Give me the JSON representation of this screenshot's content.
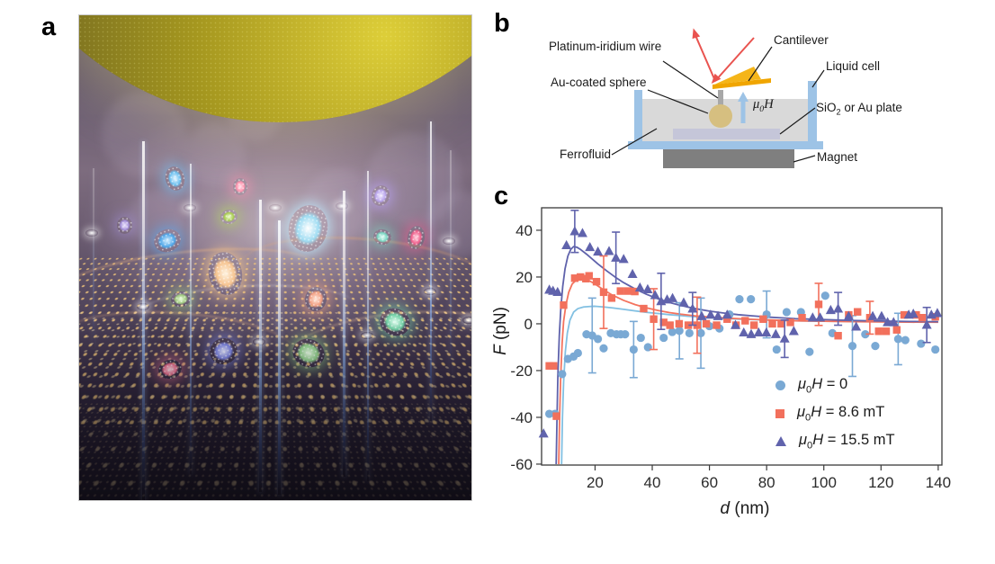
{
  "panels": {
    "a_label": "a",
    "b_label": "b",
    "c_label": "c"
  },
  "diagram": {
    "labels": {
      "platinum_wire": "Platinum-iridium wire",
      "cantilever": "Cantilever",
      "liquid_cell": "Liquid cell",
      "au_sphere": "Au-coated sphere",
      "plate_pre": "SiO",
      "plate_sub": "2",
      "plate_post": " or Au plate",
      "ferrofluid": "Ferrofluid",
      "magnet": "Magnet",
      "field_mu": "μ",
      "field_sub": "0",
      "field_H": "H"
    },
    "colors": {
      "liquid_cell_wall": "#9dc3e6",
      "ferrofluid_liquid": "#d9d9d9",
      "plate": "#c5c6d9",
      "sphere": "#d6bf80",
      "wire": "#a8a8a8",
      "cantilever": "#f0a500",
      "laser": "#e9534f",
      "field_arrow": "#9dc3e6",
      "magnet": "#7f7f7f"
    }
  },
  "chart_data": {
    "type": "scatter",
    "title": "",
    "xlabel_sym": "d",
    "xlabel_unit": " (nm)",
    "ylabel_sym": "F",
    "ylabel_unit": " (pN)",
    "xlim": [
      1.3,
      141.3
    ],
    "ylim": [
      -60.4,
      49.6
    ],
    "xticks": [
      20,
      40,
      60,
      80,
      100,
      120,
      140
    ],
    "yticks": [
      40,
      20,
      0,
      -20,
      -40,
      -60
    ],
    "grid": false,
    "legend_position": "inside lower right",
    "series": [
      {
        "label": {
          "mu": "μ",
          "sub": "0",
          "sym": "H",
          "rest": " = 0"
        },
        "marker": "circle",
        "color": "#7aa9d4",
        "line_color": "#82c0e2",
        "points": [
          [
            4,
            -38.5
          ],
          [
            6,
            -38.5
          ],
          [
            8.5,
            -21.5
          ],
          [
            10.5,
            -15
          ],
          [
            12.5,
            -14
          ],
          [
            14,
            -12.5
          ],
          [
            17,
            -4.5
          ],
          [
            19,
            -5,
            16
          ],
          [
            21,
            -6.5
          ],
          [
            23,
            -10.5
          ],
          [
            25.5,
            -4
          ],
          [
            27.5,
            -4.5
          ],
          [
            29,
            -4.5
          ],
          [
            30.5,
            -4.5
          ],
          [
            33.5,
            -11,
            12
          ],
          [
            36,
            -6
          ],
          [
            38.5,
            -10
          ],
          [
            44,
            -6
          ],
          [
            47,
            -3.5
          ],
          [
            49.5,
            -3,
            12
          ],
          [
            53,
            -4
          ],
          [
            57,
            -4,
            15
          ],
          [
            60,
            -1
          ],
          [
            63.5,
            -2
          ],
          [
            67,
            4
          ],
          [
            70.5,
            10.5
          ],
          [
            74.5,
            10.5
          ],
          [
            80,
            4,
            10
          ],
          [
            83.5,
            -11
          ],
          [
            87,
            5
          ],
          [
            92,
            5
          ],
          [
            95,
            -12
          ],
          [
            100.5,
            12
          ],
          [
            103,
            -4
          ],
          [
            110,
            -9.5,
            13
          ],
          [
            114.5,
            -4.5
          ],
          [
            118,
            -9.5
          ],
          [
            126,
            -6.5,
            11
          ],
          [
            128.5,
            -7
          ],
          [
            134,
            -8.5
          ],
          [
            139,
            -11
          ]
        ],
        "fit": [
          [
            8.3,
            -60
          ],
          [
            8.6,
            -40
          ],
          [
            9,
            -25
          ],
          [
            9.6,
            -12
          ],
          [
            10.3,
            -4
          ],
          [
            11.2,
            1.5
          ],
          [
            12.5,
            5
          ],
          [
            14,
            6.5
          ],
          [
            16,
            7.2
          ],
          [
            18,
            7.4
          ],
          [
            20,
            7.5
          ],
          [
            23,
            7.2
          ],
          [
            26,
            6.8
          ],
          [
            30,
            6.2
          ],
          [
            34,
            5.5
          ],
          [
            38,
            4.9
          ],
          [
            42,
            4.4
          ],
          [
            46,
            3.9
          ],
          [
            50,
            3.5
          ],
          [
            55,
            3.0
          ],
          [
            60,
            2.6
          ],
          [
            65,
            2.3
          ],
          [
            70,
            2.0
          ],
          [
            75,
            1.8
          ],
          [
            80,
            1.6
          ],
          [
            90,
            1.3
          ],
          [
            100,
            1.1
          ],
          [
            110,
            0.95
          ],
          [
            120,
            0.85
          ],
          [
            130,
            0.75
          ],
          [
            140,
            0.7
          ]
        ]
      },
      {
        "label": {
          "mu": "μ",
          "sub": "0",
          "sym": "H",
          "rest": " = 8.6 mT"
        },
        "marker": "square",
        "color": "#f2705c",
        "line_color": "#f4735e",
        "points": [
          [
            4,
            -18
          ],
          [
            5.5,
            -18
          ],
          [
            6.5,
            -39.5
          ],
          [
            9,
            8
          ],
          [
            12.9,
            19.5
          ],
          [
            14.9,
            20
          ],
          [
            16.8,
            19.3
          ],
          [
            17.9,
            20.5
          ],
          [
            20.5,
            18
          ],
          [
            23,
            13.5,
            15.5
          ],
          [
            25.8,
            11
          ],
          [
            28.9,
            14
          ],
          [
            31.5,
            14
          ],
          [
            33.9,
            13.8
          ],
          [
            37,
            6.5
          ],
          [
            40.5,
            2,
            13
          ],
          [
            44,
            0.6
          ],
          [
            46.2,
            -0.6
          ],
          [
            49.4,
            0
          ],
          [
            52.6,
            -0.6
          ],
          [
            55.7,
            -0.6,
            12
          ],
          [
            58.9,
            0
          ],
          [
            62.5,
            -0.6
          ],
          [
            66.2,
            2
          ],
          [
            69.3,
            -0.6
          ],
          [
            72.5,
            1.3
          ],
          [
            75.6,
            -0.6
          ],
          [
            78.8,
            2
          ],
          [
            82,
            0
          ],
          [
            85.1,
            0
          ],
          [
            88.3,
            0.6
          ],
          [
            92.4,
            2.6
          ],
          [
            98.2,
            8.3,
            9
          ],
          [
            105,
            -5.1
          ],
          [
            108.7,
            3.8
          ],
          [
            111.8,
            5.1
          ],
          [
            116.1,
            2.6,
            7
          ],
          [
            119.2,
            -3.2
          ],
          [
            121.8,
            -3.2
          ],
          [
            125.5,
            -2.6
          ],
          [
            128.1,
            3.8
          ],
          [
            132.3,
            3.8
          ],
          [
            134.4,
            2.6
          ],
          [
            139,
            3
          ]
        ],
        "fit": [
          [
            7.3,
            -60
          ],
          [
            7.6,
            -40
          ],
          [
            8,
            -22
          ],
          [
            8.5,
            -8
          ],
          [
            9,
            1
          ],
          [
            9.8,
            8
          ],
          [
            10.8,
            13.5
          ],
          [
            12,
            17
          ],
          [
            13.5,
            18.8
          ],
          [
            15,
            19.4
          ],
          [
            16.5,
            19.2
          ],
          [
            18,
            18.4
          ],
          [
            20,
            17
          ],
          [
            23,
            14.5
          ],
          [
            26,
            12.3
          ],
          [
            30,
            10
          ],
          [
            34,
            8.2
          ],
          [
            38,
            6.8
          ],
          [
            42,
            5.7
          ],
          [
            46,
            4.8
          ],
          [
            50,
            4.1
          ],
          [
            55,
            3.4
          ],
          [
            60,
            2.9
          ],
          [
            65,
            2.5
          ],
          [
            70,
            2.2
          ],
          [
            75,
            1.9
          ],
          [
            80,
            1.7
          ],
          [
            90,
            1.3
          ],
          [
            100,
            1.1
          ],
          [
            110,
            0.9
          ],
          [
            120,
            0.8
          ],
          [
            130,
            0.7
          ],
          [
            140,
            0.65
          ]
        ]
      },
      {
        "label": {
          "mu": "μ",
          "sub": "0",
          "sym": "H",
          "rest": " = 15.5 mT"
        },
        "marker": "triangle",
        "color": "#6063ac",
        "line_color": "#5f62ab",
        "points": [
          [
            2,
            -47
          ],
          [
            4,
            14.5
          ],
          [
            5.3,
            14
          ],
          [
            6.9,
            13.5
          ],
          [
            10,
            33.5
          ],
          [
            12.9,
            39.5,
            9
          ],
          [
            15.6,
            38.7
          ],
          [
            18.2,
            32.7
          ],
          [
            21,
            30.8
          ],
          [
            24.9,
            31
          ],
          [
            27.3,
            28.2,
            11
          ],
          [
            30,
            27.6
          ],
          [
            33.1,
            21.2
          ],
          [
            35.7,
            15.4
          ],
          [
            38.4,
            14.7
          ],
          [
            41,
            12.2
          ],
          [
            43.1,
            9.6,
            12
          ],
          [
            45.2,
            10.3
          ],
          [
            47.1,
            10.9
          ],
          [
            51,
            9
          ],
          [
            54.1,
            6.4,
            7
          ],
          [
            57.3,
            3.2
          ],
          [
            60.4,
            3.8
          ],
          [
            63,
            3.2
          ],
          [
            66.2,
            3.8
          ],
          [
            69.1,
            -0.6
          ],
          [
            72,
            -3.8
          ],
          [
            74.6,
            -4.5
          ],
          [
            77.2,
            -3.8
          ],
          [
            79.9,
            -3.8
          ],
          [
            83.2,
            -4.5
          ],
          [
            86.3,
            -6.4,
            8
          ],
          [
            89.5,
            -3.2
          ],
          [
            96.1,
            2.6
          ],
          [
            98.7,
            2.6
          ],
          [
            102.4,
            5.8
          ],
          [
            105,
            6.4,
            7
          ],
          [
            108.7,
            3.2
          ],
          [
            111.3,
            -1.3
          ],
          [
            117.1,
            3.2
          ],
          [
            120.2,
            3.2
          ],
          [
            122.3,
            0.6
          ],
          [
            124.4,
            0.6
          ],
          [
            129.7,
            3.8
          ],
          [
            131.3,
            4.2
          ],
          [
            136,
            -0.5,
            7.5
          ],
          [
            137.6,
            3.8
          ],
          [
            139.7,
            4.5
          ]
        ],
        "fit": [
          [
            6.4,
            -60
          ],
          [
            6.7,
            -40
          ],
          [
            7,
            -22
          ],
          [
            7.5,
            -5
          ],
          [
            8,
            6
          ],
          [
            8.7,
            16
          ],
          [
            9.5,
            23.5
          ],
          [
            10.5,
            29
          ],
          [
            11.5,
            31.8
          ],
          [
            12.5,
            33
          ],
          [
            13.7,
            32.7
          ],
          [
            15,
            31.7
          ],
          [
            17,
            29.8
          ],
          [
            19,
            27.7
          ],
          [
            21,
            25.6
          ],
          [
            24,
            22.7
          ],
          [
            27,
            20
          ],
          [
            30,
            17.6
          ],
          [
            34,
            14.9
          ],
          [
            38,
            12.6
          ],
          [
            42,
            10.7
          ],
          [
            46,
            9.1
          ],
          [
            50,
            7.8
          ],
          [
            55,
            6.5
          ],
          [
            60,
            5.4
          ],
          [
            65,
            4.6
          ],
          [
            70,
            3.9
          ],
          [
            75,
            3.4
          ],
          [
            80,
            2.9
          ],
          [
            90,
            2.2
          ],
          [
            100,
            1.8
          ],
          [
            110,
            1.4
          ],
          [
            120,
            1.2
          ],
          [
            130,
            1.0
          ],
          [
            140,
            0.9
          ]
        ]
      }
    ]
  }
}
